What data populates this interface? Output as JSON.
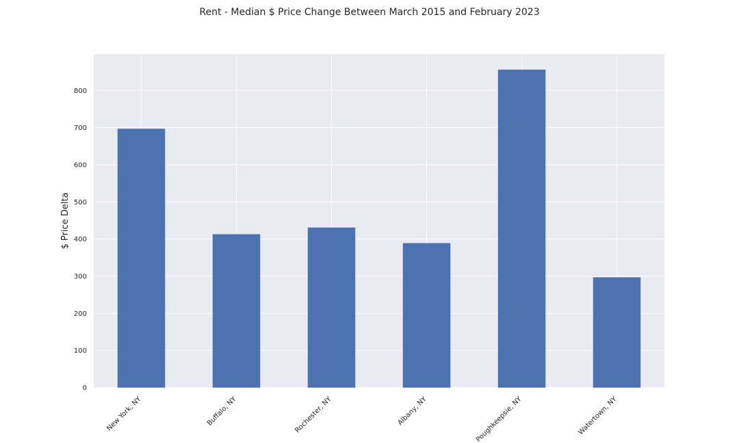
{
  "chart_data": {
    "type": "bar",
    "title": "Rent - Median $ Price Change Between March 2015 and February 2023",
    "xlabel": "",
    "ylabel": "$ Price Delta",
    "categories": [
      "New York, NY",
      "Buffalo, NY",
      "Rochester, NY",
      "Albany, NY",
      "Poughkeepsie, NY",
      "Watertown, NY"
    ],
    "values": [
      697,
      413,
      431,
      389,
      856,
      297
    ],
    "ylim": [
      0,
      898
    ],
    "yticks": [
      0,
      100,
      200,
      300,
      400,
      500,
      600,
      700,
      800
    ],
    "grid": true,
    "legend": "none",
    "colors": {
      "bar": "#4c72b0",
      "plot_background": "#eaeaf2",
      "grid": "#ffffff",
      "text": "#262626"
    }
  }
}
